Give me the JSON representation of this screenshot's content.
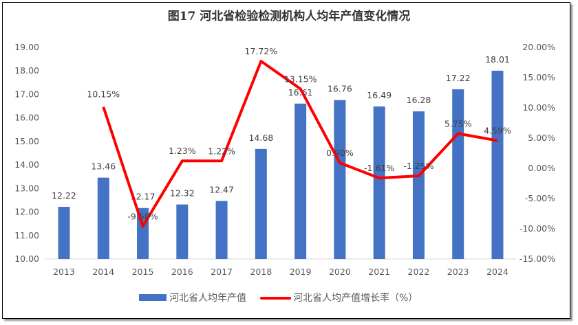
{
  "chart_data": {
    "type": "bar+line",
    "title": "图17  河北省检验检测机构人均年产值变化情况",
    "categories": [
      "2013",
      "2014",
      "2015",
      "2016",
      "2017",
      "2018",
      "2019",
      "2020",
      "2021",
      "2022",
      "2023",
      "2024"
    ],
    "series": [
      {
        "name": "河北省人均年产值",
        "type": "bar",
        "axis": "left",
        "color": "#4472C4",
        "values": [
          12.22,
          13.46,
          12.17,
          12.32,
          12.47,
          14.68,
          16.61,
          16.76,
          16.49,
          16.28,
          17.22,
          18.01
        ],
        "labels": [
          "12.22",
          "13.46",
          "12.17",
          "12.32",
          "12.47",
          "14.68",
          "16.61",
          "16.76",
          "16.49",
          "16.28",
          "17.22",
          "18.01"
        ]
      },
      {
        "name": "河北省人均产值增长率（%）",
        "type": "line",
        "axis": "right",
        "color": "#FF0000",
        "values": [
          null,
          10.15,
          -9.58,
          1.23,
          1.22,
          17.72,
          13.15,
          0.9,
          -1.61,
          -1.25,
          5.75,
          4.59
        ],
        "labels": [
          "",
          "10.15%",
          "-9.58%",
          "1.23%",
          "1.22%",
          "17.72%",
          "13.15%",
          "0.90%",
          "-1.61%",
          "-1.25%",
          "5.75%",
          "4.59%"
        ]
      }
    ],
    "y_left": {
      "range": [
        10,
        19
      ],
      "ticks": [
        "10.00",
        "11.00",
        "12.00",
        "13.00",
        "14.00",
        "15.00",
        "16.00",
        "17.00",
        "18.00",
        "19.00"
      ]
    },
    "y_right": {
      "range": [
        -15,
        20
      ],
      "ticks": [
        "-15.00%",
        "-10.00%",
        "-5.00%",
        "0.00%",
        "5.00%",
        "10.00%",
        "15.00%",
        "20.00%"
      ]
    },
    "grid": false,
    "legend": "bottom"
  }
}
